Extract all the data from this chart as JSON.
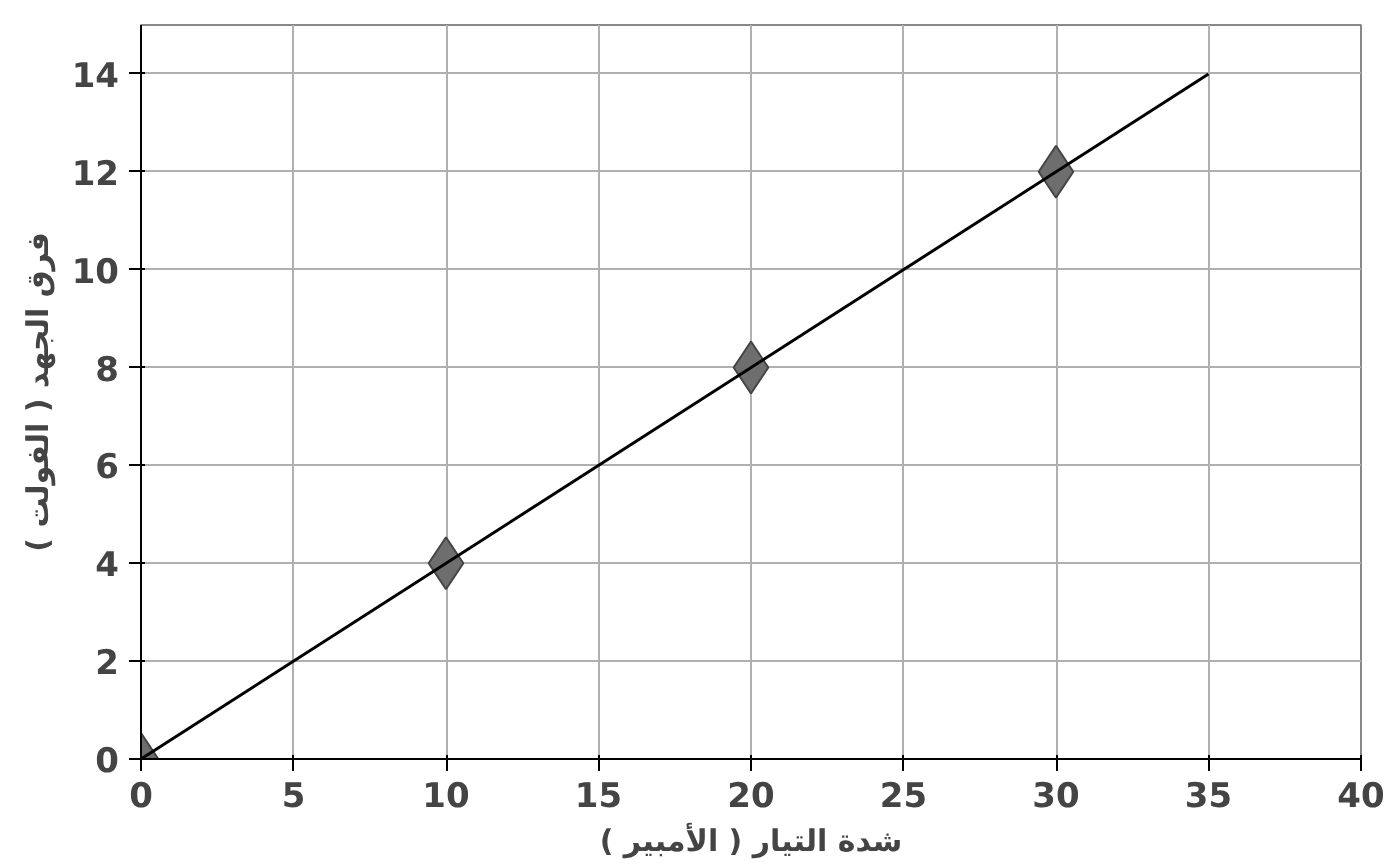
{
  "chart_data": {
    "type": "scatter",
    "xlabel": "شدة التيار ( الأمبير )",
    "ylabel": "فرق الجهد ( الفولت )",
    "x": [
      0,
      10,
      20,
      30
    ],
    "series": [
      {
        "color": "#6e6e6e",
        "values": [
          0,
          4,
          8,
          12
        ],
        "marker": "diamond"
      },
      {
        "type": "line",
        "color": "#000000",
        "x": [
          0,
          35
        ],
        "values": [
          0,
          14
        ],
        "marker": "none"
      }
    ],
    "xlim": [
      0,
      40
    ],
    "ylim": [
      0,
      15
    ],
    "xticks": [
      0,
      5,
      10,
      15,
      20,
      25,
      30,
      35,
      40
    ],
    "yticks": [
      0,
      2,
      4,
      6,
      8,
      10,
      12,
      14
    ],
    "grid": true
  }
}
